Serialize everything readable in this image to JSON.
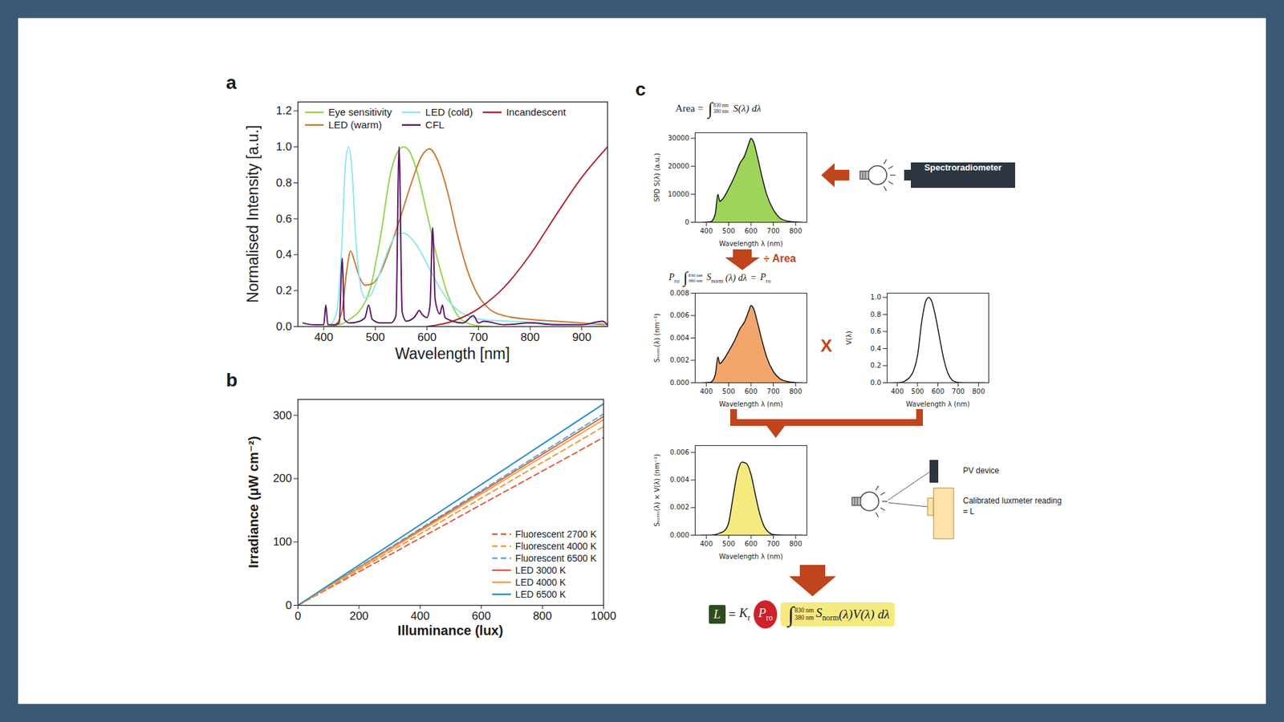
{
  "chart_data": [
    {
      "panel_label": "a",
      "type": "line",
      "x_label": "Wavelength [nm]",
      "y_label": "Normalised Intensity [a.u.]",
      "xlim": [
        350,
        950
      ],
      "xticks": [
        400,
        500,
        600,
        700,
        800,
        900
      ],
      "ylim": [
        0,
        1.25
      ],
      "yticks": [
        {
          "value": 0,
          "label": "0.0"
        },
        0.2,
        0.4,
        0.6,
        0.8,
        {
          "value": 1,
          "label": "1.0"
        },
        1.2
      ],
      "legend": "top",
      "series": [
        {
          "name": "Eye sensitivity",
          "color": "#8fd44a",
          "x": [
            400,
            430,
            450,
            470,
            490,
            510,
            530,
            545,
            555,
            565,
            580,
            600,
            620,
            640,
            660,
            680,
            700,
            720
          ],
          "values": [
            0.0,
            0.01,
            0.04,
            0.09,
            0.21,
            0.5,
            0.86,
            0.98,
            1.0,
            0.98,
            0.87,
            0.63,
            0.38,
            0.18,
            0.06,
            0.017,
            0.004,
            0.001
          ]
        },
        {
          "name": "LED (warm)",
          "color": "#c8782c",
          "x": [
            420,
            435,
            445,
            452,
            460,
            470,
            480,
            495,
            510,
            530,
            550,
            570,
            590,
            605,
            620,
            640,
            660,
            680,
            700,
            720,
            750,
            800,
            850,
            900,
            950
          ],
          "values": [
            0.0,
            0.08,
            0.32,
            0.42,
            0.36,
            0.27,
            0.23,
            0.24,
            0.3,
            0.45,
            0.62,
            0.8,
            0.95,
            0.99,
            0.93,
            0.75,
            0.5,
            0.3,
            0.17,
            0.1,
            0.06,
            0.04,
            0.03,
            0.02,
            0.01
          ]
        },
        {
          "name": "LED (cold)",
          "color": "#8ee6ef",
          "x": [
            410,
            425,
            435,
            442,
            448,
            455,
            462,
            470,
            480,
            490,
            500,
            515,
            530,
            545,
            555,
            570,
            585,
            600,
            620,
            640,
            660,
            690,
            720,
            760,
            800,
            850,
            900,
            950
          ],
          "values": [
            0.0,
            0.08,
            0.45,
            0.9,
            1.0,
            0.86,
            0.5,
            0.25,
            0.16,
            0.17,
            0.23,
            0.35,
            0.46,
            0.52,
            0.52,
            0.49,
            0.43,
            0.35,
            0.24,
            0.15,
            0.09,
            0.05,
            0.035,
            0.03,
            0.025,
            0.015,
            0.01,
            0.005
          ]
        },
        {
          "name": "CFL",
          "color": "#5b1466",
          "x": [
            360,
            380,
            400,
            404,
            408,
            420,
            430,
            436,
            440,
            450,
            470,
            480,
            487,
            494,
            510,
            530,
            540,
            546,
            552,
            560,
            575,
            580,
            585,
            590,
            600,
            606,
            611,
            616,
            625,
            630,
            635,
            650,
            670,
            690,
            700,
            710,
            750,
            800,
            850,
            900,
            940,
            950
          ],
          "values": [
            0.02,
            0.01,
            0.01,
            0.12,
            0.01,
            0.01,
            0.02,
            0.38,
            0.04,
            0.02,
            0.03,
            0.05,
            0.12,
            0.04,
            0.02,
            0.02,
            0.06,
            1.0,
            0.08,
            0.03,
            0.05,
            0.07,
            0.09,
            0.07,
            0.05,
            0.12,
            0.55,
            0.15,
            0.07,
            0.12,
            0.05,
            0.03,
            0.02,
            0.06,
            0.02,
            0.03,
            0.01,
            0.02,
            0.01,
            0.01,
            0.03,
            0.01
          ]
        },
        {
          "name": "Incandescent",
          "color": "#a8252a",
          "x": [
            600,
            650,
            700,
            750,
            800,
            850,
            900,
            950
          ],
          "values": [
            0.0,
            0.03,
            0.1,
            0.22,
            0.4,
            0.62,
            0.83,
            1.0
          ]
        }
      ]
    },
    {
      "panel_label": "b",
      "type": "line",
      "x_label": "Illuminance (lux)",
      "y_label": "Irradiance (μW cm⁻²)",
      "x": [
        0,
        1000
      ],
      "xlim": [
        0,
        1000
      ],
      "xticks": [
        0,
        200,
        400,
        600,
        800,
        1000
      ],
      "ylim": [
        0,
        325
      ],
      "yticks": [
        0,
        100,
        200,
        300
      ],
      "legend": "bottom-right",
      "series": [
        {
          "name": "Fluorescent 2700 K",
          "color": "#e05a3a",
          "line_style": "dashed",
          "values": [
            0,
            265
          ]
        },
        {
          "name": "Fluorescent 4000 K",
          "color": "#f0963c",
          "line_style": "dashed",
          "values": [
            0,
            282
          ]
        },
        {
          "name": "Fluorescent 6500 K",
          "color": "#5aa7d6",
          "line_style": "dashed",
          "values": [
            0,
            302
          ]
        },
        {
          "name": "LED 3000 K",
          "color": "#e05a3a",
          "line_style": "solid",
          "values": [
            0,
            298
          ]
        },
        {
          "name": "LED 4000 K",
          "color": "#f0a04a",
          "line_style": "solid",
          "values": [
            0,
            293
          ]
        },
        {
          "name": "LED 6500 K",
          "color": "#2a8fc4",
          "line_style": "solid",
          "values": [
            0,
            318
          ]
        }
      ]
    },
    {
      "type": "area",
      "x_label": "Wavelength λ (nm)",
      "y_label": "SPD S(λ) (a.u.)",
      "color": "#9ed45a",
      "x": [
        380,
        420,
        440,
        452,
        460,
        475,
        500,
        530,
        550,
        570,
        590,
        600,
        610,
        630,
        650,
        670,
        700,
        730,
        760,
        800,
        830
      ],
      "values": [
        0,
        200,
        3000,
        10000,
        7500,
        8500,
        12000,
        17000,
        21000,
        23500,
        28000,
        30000,
        29000,
        23000,
        16000,
        10000,
        4500,
        1500,
        500,
        100,
        0
      ],
      "xlim": [
        350,
        850
      ],
      "xticks": [
        400,
        500,
        600,
        700,
        800
      ],
      "ylim": [
        0,
        32000
      ],
      "yticks": [
        0,
        10000,
        20000,
        30000
      ]
    },
    {
      "type": "area",
      "x_label": "Wavelength λ (nm)",
      "y_label": "Sₙₒᵣₘ(λ) (nm⁻¹)",
      "color": "#f2a66c",
      "x": [
        380,
        420,
        440,
        452,
        460,
        475,
        500,
        530,
        550,
        570,
        590,
        600,
        610,
        630,
        650,
        670,
        700,
        730,
        760,
        800,
        830
      ],
      "values": [
        0,
        5e-05,
        0.0007,
        0.0023,
        0.0017,
        0.002,
        0.0028,
        0.0039,
        0.0048,
        0.0054,
        0.0064,
        0.0069,
        0.0067,
        0.0053,
        0.0037,
        0.0023,
        0.001,
        0.00035,
        0.00012,
        2e-05,
        0
      ],
      "xlim": [
        350,
        850
      ],
      "xticks": [
        400,
        500,
        600,
        700,
        800
      ],
      "ylim": [
        0,
        0.008
      ],
      "yticks": [
        {
          "value": 0,
          "label": "0.000"
        },
        0.002,
        0.004,
        0.006,
        0.008
      ]
    },
    {
      "type": "line",
      "x_label": "Wavelength λ (nm)",
      "y_label": "V(λ)",
      "color": "#111111",
      "x": [
        380,
        400,
        420,
        440,
        460,
        480,
        500,
        520,
        540,
        555,
        570,
        590,
        610,
        630,
        650,
        670,
        690,
        710,
        730,
        760,
        800,
        830
      ],
      "values": [
        0,
        0.0004,
        0.004,
        0.023,
        0.06,
        0.139,
        0.323,
        0.71,
        0.954,
        1.0,
        0.952,
        0.757,
        0.503,
        0.265,
        0.107,
        0.032,
        0.008,
        0.002,
        0.0005,
        0,
        0,
        0
      ],
      "xlim": [
        350,
        850
      ],
      "xticks": [
        400,
        500,
        600,
        700,
        800
      ],
      "ylim": [
        0,
        1.05
      ],
      "yticks": [
        {
          "value": 0,
          "label": "0.0"
        },
        0.2,
        0.4,
        0.6,
        0.8,
        {
          "value": 1,
          "label": "1.0"
        }
      ]
    },
    {
      "type": "area",
      "x_label": "Wavelength λ (nm)",
      "y_label": "Sₙₒᵣₘ(λ) × V(λ) (nm⁻¹)",
      "color": "#f4ea80",
      "x": [
        380,
        420,
        440,
        460,
        480,
        500,
        520,
        540,
        560,
        580,
        600,
        620,
        640,
        660,
        680,
        700,
        730,
        760,
        800,
        830
      ],
      "values": [
        0,
        2e-07,
        4e-05,
        0.00015,
        0.0003,
        0.0009,
        0.0028,
        0.0046,
        0.0053,
        0.0052,
        0.0044,
        0.0029,
        0.0015,
        0.0006,
        0.0002,
        4e-05,
        1e-05,
        0,
        0,
        0
      ],
      "xlim": [
        350,
        850
      ],
      "xticks": [
        400,
        500,
        600,
        700,
        800
      ],
      "ylim": [
        0,
        0.0065
      ],
      "yticks": [
        {
          "value": 0,
          "label": "0.000"
        },
        0.002,
        0.004,
        0.006
      ]
    }
  ],
  "diagram": {
    "panel_label": "c",
    "instrument": "Spectroradiometer",
    "step_label": "÷ Area",
    "multiply": "X",
    "pv_device": "PV device",
    "luxmeter": "Calibrated luxmeter reading = L",
    "integral_symbol": "∫",
    "area_formula": {
      "lhs": "Area",
      "operator": "=",
      "lower": "380 nm",
      "upper": "830 nm",
      "integrand": "S(λ) dλ"
    },
    "normalisation_formula": {
      "factor": "P",
      "factor_sub": "ro",
      "lower": "380 nm",
      "upper": "830 nm",
      "integrand": "S",
      "integrand_sub": "norm",
      "integrand_rest": "(λ) dλ",
      "operator": "=",
      "rhs": "P",
      "rhs_sub": "ro"
    },
    "final_formula": {
      "lhs": "L",
      "operator": "=",
      "constant": "K",
      "constant_sub": "r",
      "factor": "P",
      "factor_sub": "ro",
      "lower": "380 nm",
      "upper": "830 nm",
      "integrand": "S",
      "integrand_sub": "norm",
      "integrand_rest": "(λ)V(λ) dλ"
    }
  }
}
